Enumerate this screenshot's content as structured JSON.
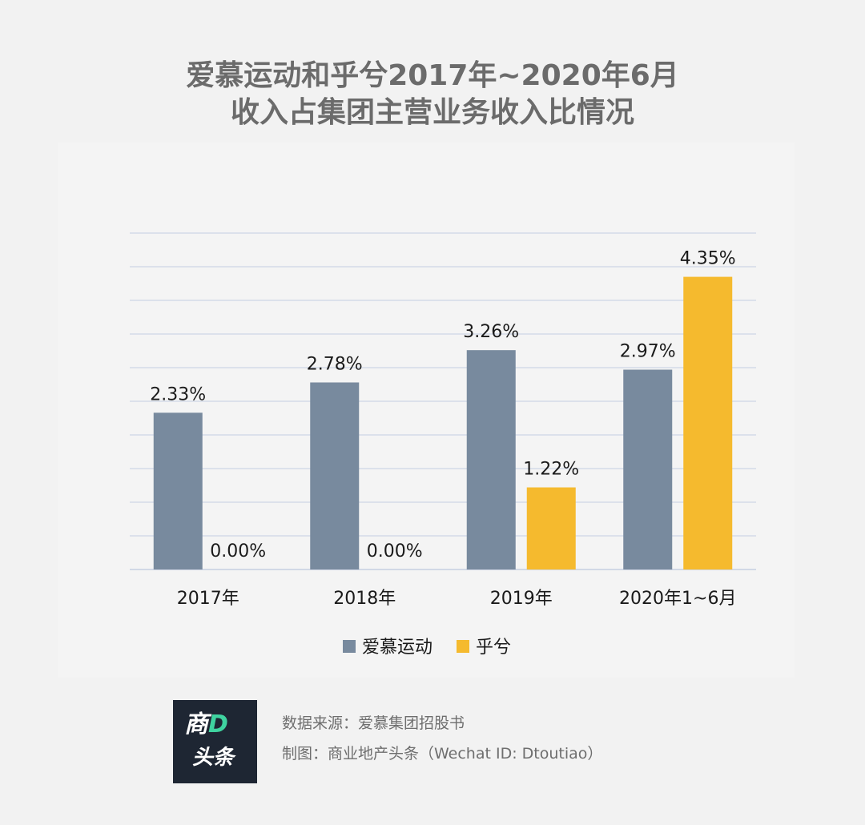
{
  "title": {
    "line1": "爱慕运动和乎兮2017年~2020年6月",
    "line2": "收入占集团主营业务收入比情况"
  },
  "colors": {
    "aimu": "#788a9e",
    "huxi": "#f5ba2e",
    "grid": "#c5cee2",
    "text": "#1a1a1a"
  },
  "chart_data": {
    "type": "bar",
    "title": "爱慕运动和乎兮2017年~2020年6月 收入占集团主营业务收入比情况",
    "categories": [
      "2017年",
      "2018年",
      "2019年",
      "2020年1~6月"
    ],
    "series": [
      {
        "name": "爱慕运动",
        "values": [
          2.33,
          2.78,
          3.26,
          2.97
        ],
        "labels": [
          "2.33%",
          "2.78%",
          "3.26%",
          "2.97%"
        ]
      },
      {
        "name": "乎兮",
        "values": [
          0.0,
          0.0,
          1.22,
          4.35
        ],
        "labels": [
          "0.00%",
          "0.00%",
          "1.22%",
          "4.35%"
        ]
      }
    ],
    "ylim": [
      0,
      5
    ],
    "grid": true,
    "legend": "bottom-center"
  },
  "logo": {
    "line1_a": "商",
    "line1_b": "D",
    "line2": "头条"
  },
  "footer": {
    "source": "数据来源：爱慕集团招股书",
    "credit": "制图：商业地产头条（Wechat ID: Dtoutiao）"
  }
}
